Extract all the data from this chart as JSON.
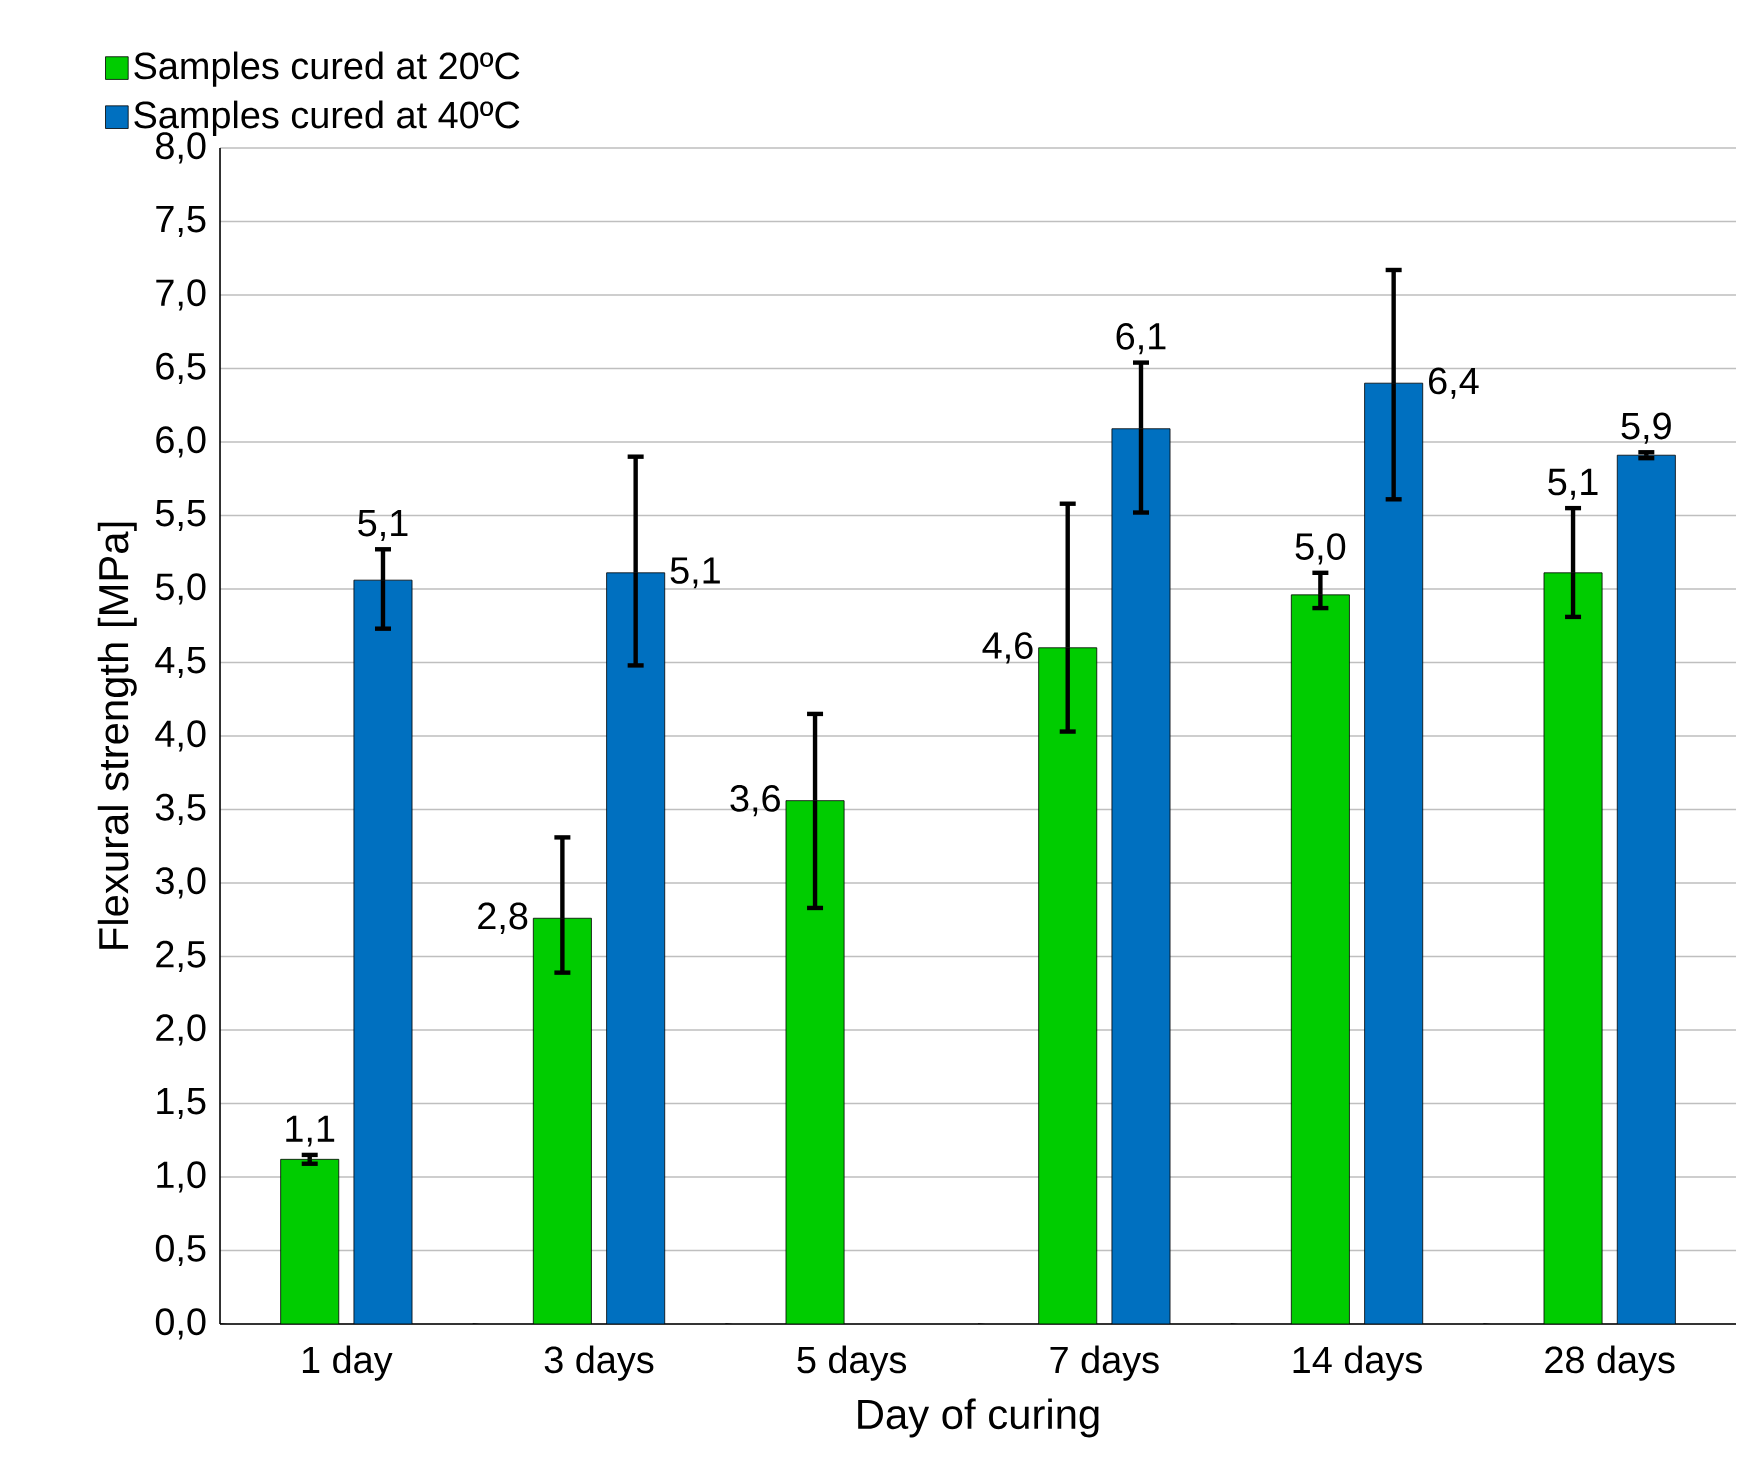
{
  "chart_data": {
    "type": "bar",
    "xlabel": "Day of curing",
    "ylabel": "Flexural strength [MPa]",
    "categories": [
      "1 day",
      "3 days",
      "5 days",
      "7 days",
      "14 days",
      "28 days"
    ],
    "series": [
      {
        "name": "Samples cured at 20ºC",
        "color": "#00cc00",
        "values": [
          1.12,
          2.76,
          3.56,
          4.6,
          4.96,
          5.11
        ],
        "errors": [
          [
            1.09,
            1.15
          ],
          [
            2.39,
            3.31
          ],
          [
            2.83,
            4.15
          ],
          [
            4.03,
            5.58
          ],
          [
            4.87,
            5.11
          ],
          [
            4.81,
            5.55
          ]
        ],
        "value_labels": [
          "1,1",
          "2,8",
          "3,6",
          "4,6",
          "5,0",
          "5,1"
        ]
      },
      {
        "name": "Samples cured at 40ºC",
        "color": "#0070c0",
        "values": [
          5.06,
          5.11,
          null,
          6.09,
          6.4,
          5.91
        ],
        "errors": [
          [
            4.73,
            5.27
          ],
          [
            4.48,
            5.9
          ],
          null,
          [
            5.52,
            6.54
          ],
          [
            5.61,
            7.17
          ],
          [
            5.89,
            5.93
          ]
        ],
        "value_labels": [
          "5,1",
          "5,1",
          null,
          "6,1",
          "6,4",
          "5,9"
        ]
      }
    ],
    "ylim": [
      0,
      8
    ],
    "yticks": [
      {
        "value": 0,
        "label": "0,0"
      },
      {
        "value": 0.5,
        "label": "0,5"
      },
      {
        "value": 1,
        "label": "1,0"
      },
      {
        "value": 1.5,
        "label": "1,5"
      },
      {
        "value": 2,
        "label": "2,0"
      },
      {
        "value": 2.5,
        "label": "2,5"
      },
      {
        "value": 3,
        "label": "3,0"
      },
      {
        "value": 3.5,
        "label": "3,5"
      },
      {
        "value": 4,
        "label": "4,0"
      },
      {
        "value": 4.5,
        "label": "4,5"
      },
      {
        "value": 5,
        "label": "5,0"
      },
      {
        "value": 5.5,
        "label": "5,5"
      },
      {
        "value": 6,
        "label": "6,0"
      },
      {
        "value": 6.5,
        "label": "6,5"
      },
      {
        "value": 7,
        "label": "7,0"
      },
      {
        "value": 7.5,
        "label": "7,5"
      },
      {
        "value": 8,
        "label": "8,0"
      }
    ],
    "grid": "y",
    "legend": "top left"
  }
}
